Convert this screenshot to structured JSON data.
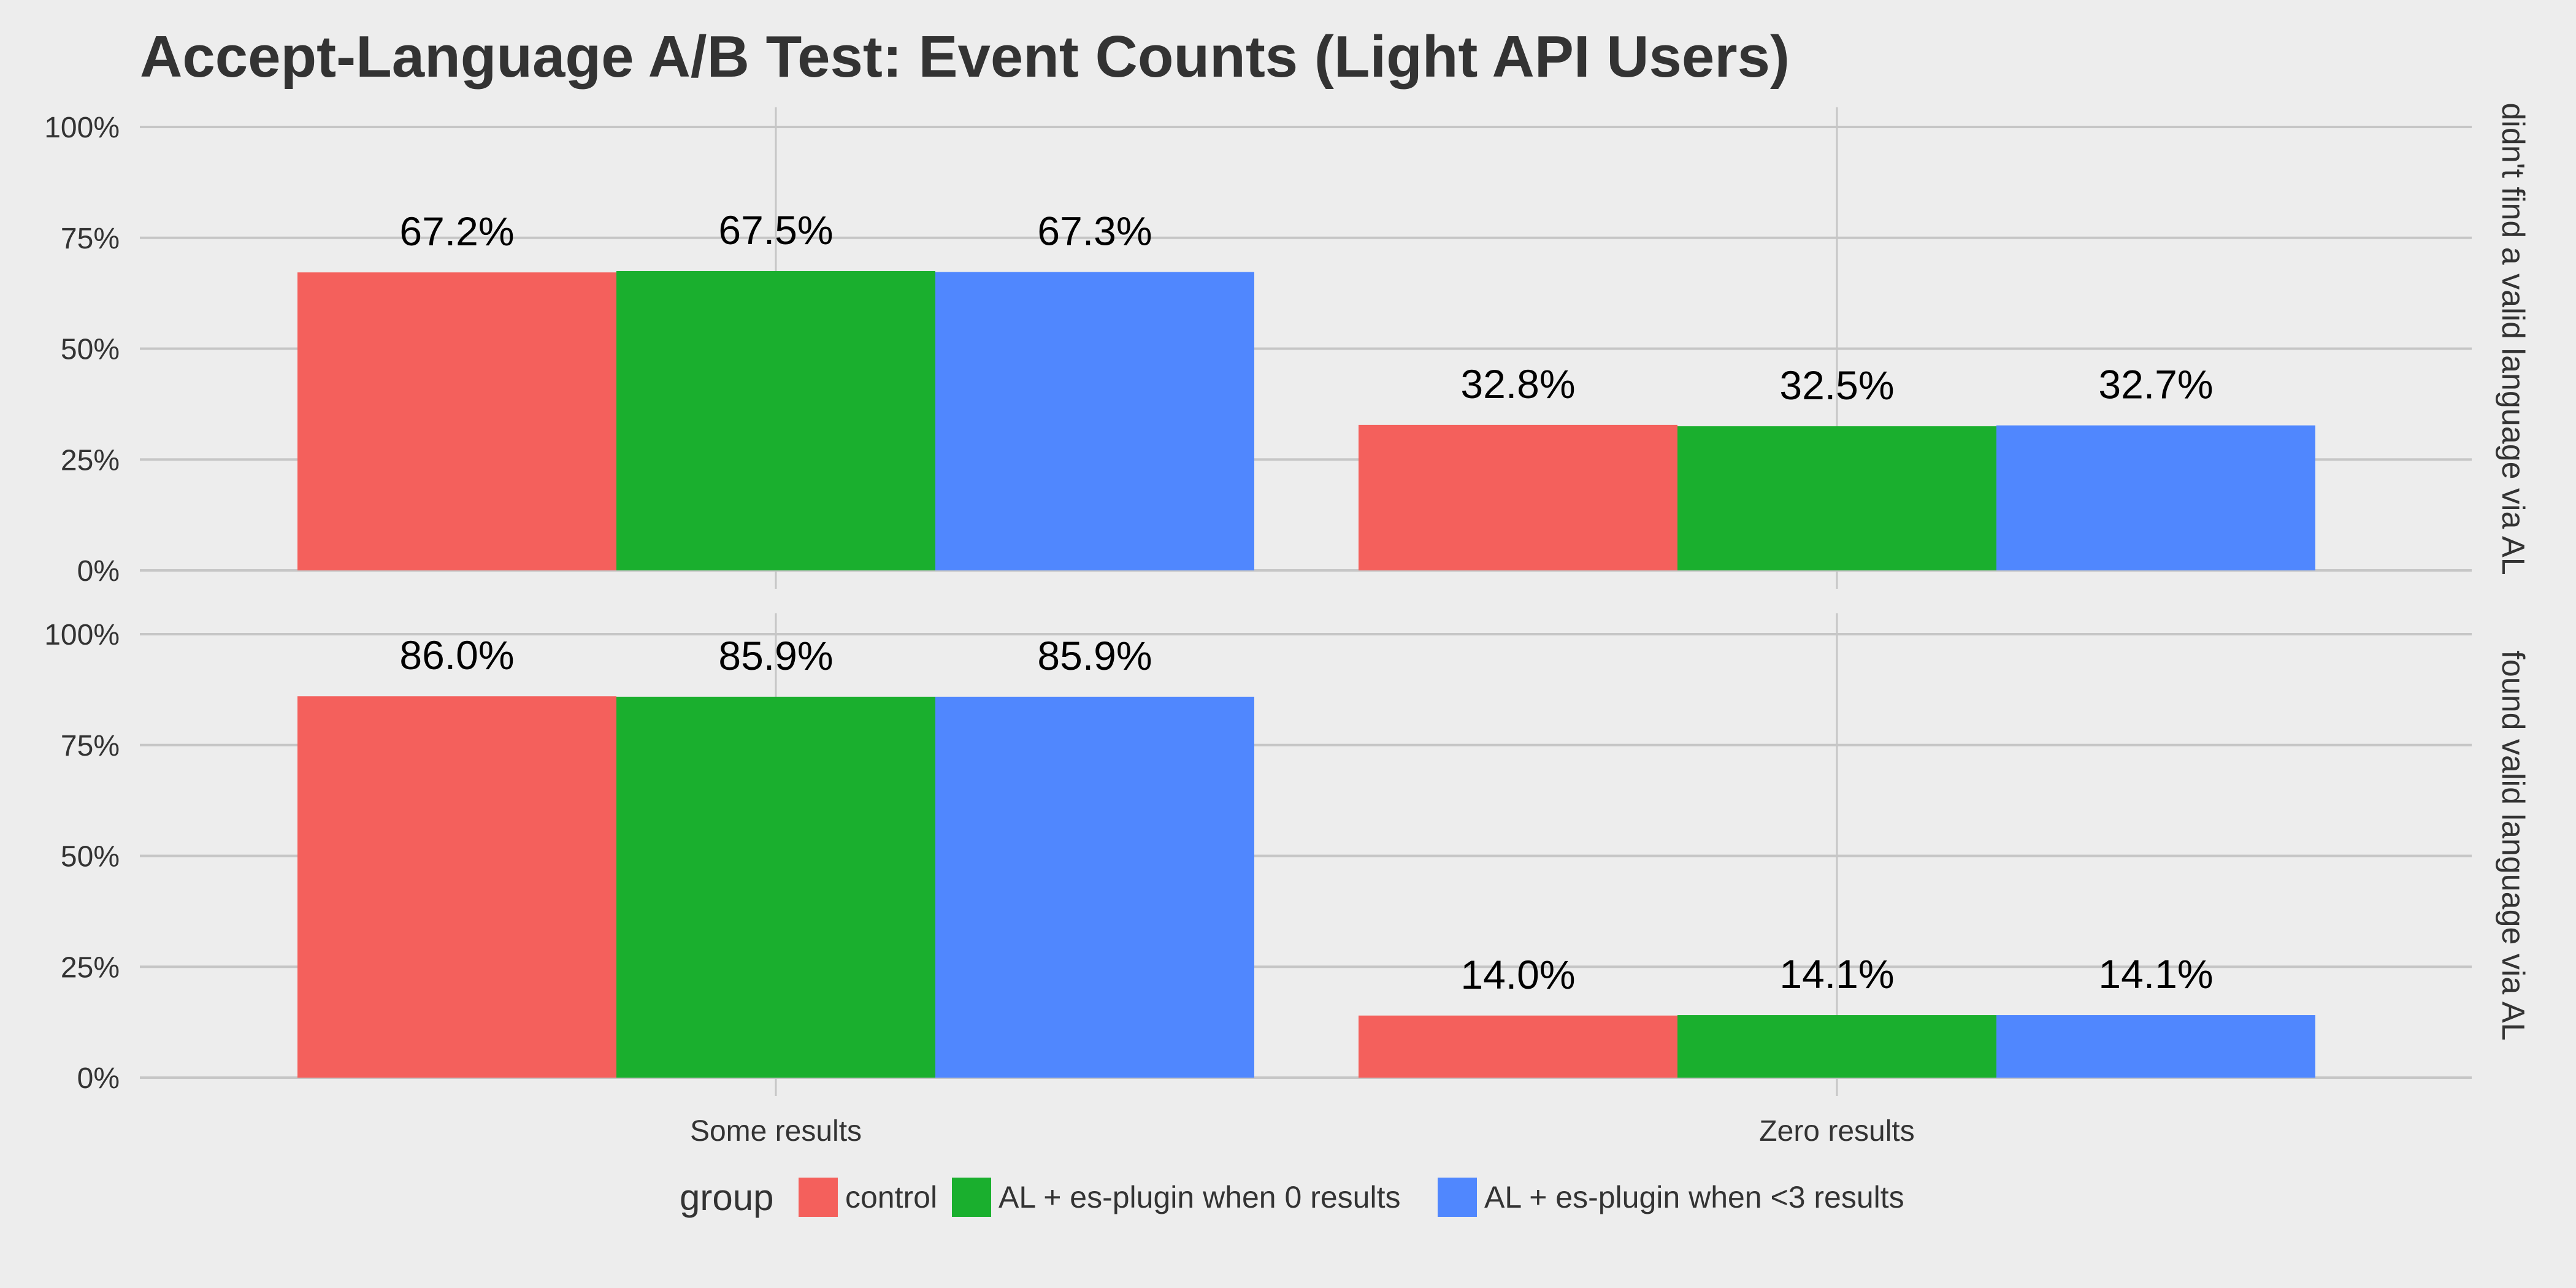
{
  "chart_data": {
    "type": "bar",
    "title": "Accept-Language A/B Test: Event Counts (Light API Users)",
    "categories": [
      "Some results",
      "Zero results"
    ],
    "groups": [
      "control",
      "AL + es-plugin when 0 results",
      "AL + es-plugin when <3 results"
    ],
    "colors": [
      "#f4605c",
      "#1aaf2e",
      "#5087fe"
    ],
    "legend_title": "group",
    "legend_position": "bottom",
    "ylim": [
      0,
      1
    ],
    "y_ticks": [
      {
        "value": 0,
        "label": "0%"
      },
      {
        "value": 0.25,
        "label": "25%"
      },
      {
        "value": 0.5,
        "label": "50%"
      },
      {
        "value": 0.75,
        "label": "75%"
      },
      {
        "value": 1.0,
        "label": "100%"
      }
    ],
    "grid": true,
    "panels": [
      {
        "strip": "didn't find a valid language via AL",
        "values": [
          [
            0.672,
            0.675,
            0.673
          ],
          [
            0.328,
            0.325,
            0.327
          ]
        ],
        "labels": [
          [
            "67.2%",
            "67.5%",
            "67.3%"
          ],
          [
            "32.8%",
            "32.5%",
            "32.7%"
          ]
        ]
      },
      {
        "strip": "found valid language via AL",
        "values": [
          [
            0.86,
            0.859,
            0.859
          ],
          [
            0.14,
            0.141,
            0.141
          ]
        ],
        "labels": [
          [
            "86.0%",
            "85.9%",
            "85.9%"
          ],
          [
            "14.0%",
            "14.1%",
            "14.1%"
          ]
        ]
      }
    ]
  }
}
